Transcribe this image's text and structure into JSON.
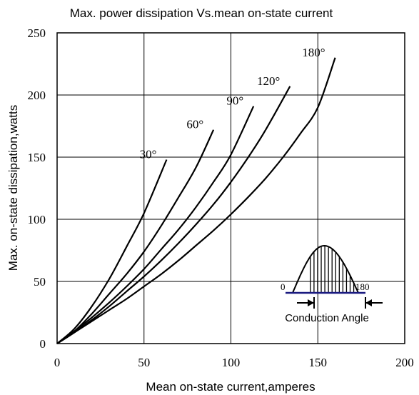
{
  "chart_data": {
    "type": "line",
    "title": "Max. power dissipation Vs.mean on-state current",
    "xlabel": "Mean on-state current,amperes",
    "ylabel": "Max. on-state dissipation,watts",
    "xlim": [
      0,
      200
    ],
    "ylim": [
      0,
      250
    ],
    "xticks": [
      0,
      50,
      100,
      150,
      200
    ],
    "yticks": [
      0,
      50,
      100,
      150,
      200,
      250
    ],
    "grid": true,
    "colors": {
      "curve": "#000000",
      "baseline": "#1a1a80",
      "grid": "#000000"
    },
    "series": [
      {
        "name": "30°",
        "x": [
          0,
          10,
          20,
          30,
          40,
          50,
          63
        ],
        "y": [
          0,
          12,
          30,
          52,
          78,
          105,
          148
        ]
      },
      {
        "name": "60°",
        "x": [
          0,
          10,
          20,
          30,
          40,
          50,
          60,
          70,
          80,
          90
        ],
        "y": [
          0,
          10,
          24,
          40,
          56,
          74,
          95,
          118,
          142,
          172
        ]
      },
      {
        "name": "90°",
        "x": [
          0,
          10,
          20,
          30,
          40,
          50,
          60,
          70,
          80,
          90,
          100,
          113
        ],
        "y": [
          0,
          10,
          21,
          33,
          46,
          60,
          76,
          92,
          110,
          130,
          152,
          191
        ]
      },
      {
        "name": "120°",
        "x": [
          0,
          10,
          20,
          30,
          40,
          50,
          60,
          70,
          80,
          90,
          100,
          110,
          120,
          134
        ],
        "y": [
          0,
          9,
          19,
          30,
          42,
          54,
          67,
          81,
          96,
          112,
          130,
          150,
          172,
          207
        ]
      },
      {
        "name": "180°",
        "x": [
          0,
          10,
          20,
          30,
          40,
          50,
          60,
          70,
          80,
          90,
          100,
          110,
          120,
          130,
          140,
          150,
          160
        ],
        "y": [
          0,
          9,
          18,
          27,
          36,
          46,
          56,
          67,
          79,
          91,
          104,
          118,
          133,
          150,
          169,
          190,
          230
        ]
      }
    ],
    "inset": {
      "label_start": "0",
      "label_end": "180",
      "caption": "Conduction Angle"
    }
  }
}
